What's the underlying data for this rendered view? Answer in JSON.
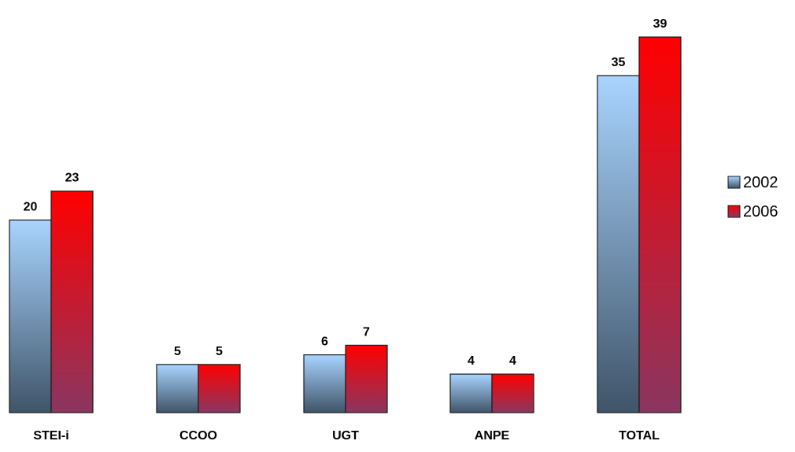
{
  "chart_data": {
    "type": "bar",
    "categories": [
      "STEI-i",
      "CCOO",
      "UGT",
      "ANPE",
      "TOTAL"
    ],
    "series": [
      {
        "name": "2002",
        "values": [
          20,
          5,
          6,
          4,
          35
        ],
        "color_top": "#a9d4ff",
        "color_bottom": "#3f5468"
      },
      {
        "name": "2006",
        "values": [
          23,
          5,
          7,
          4,
          39
        ],
        "color_top": "#ff0000",
        "color_bottom": "#8a3660"
      }
    ],
    "ylim": [
      0,
      40
    ],
    "grid": false,
    "data_labels": true,
    "legend_position": "right"
  }
}
